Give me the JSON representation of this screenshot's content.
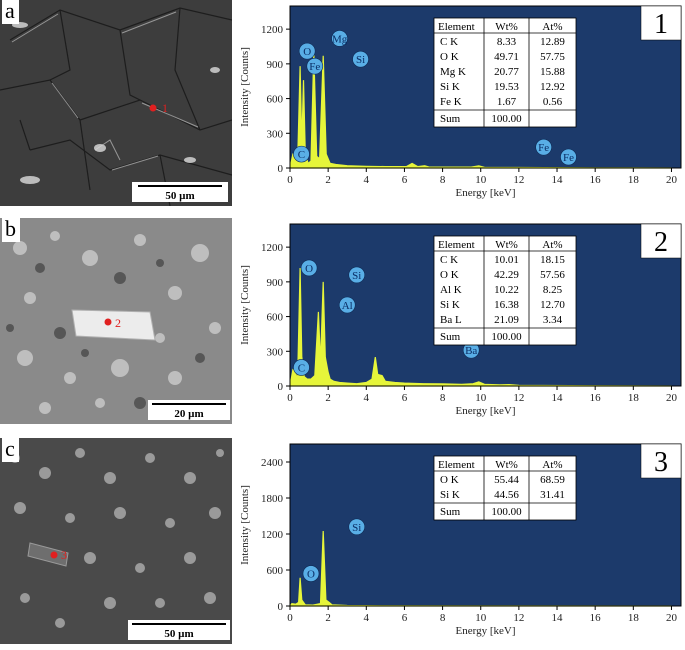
{
  "figure": {
    "rows": [
      {
        "letter": "a",
        "spot_label": "1",
        "scale_bar": "50 µm",
        "spectrum_number": "1",
        "chart_data": {
          "type": "line",
          "xlabel": "Energy [keV]",
          "ylabel": "Intensity [Counts]",
          "xlim": [
            0,
            20.5
          ],
          "ylim": [
            0,
            1400
          ],
          "xticks": [
            0,
            2,
            4,
            6,
            8,
            10,
            12,
            14,
            16,
            18,
            20
          ],
          "yticks": [
            0,
            300,
            600,
            900,
            1200
          ],
          "peaks": [
            {
              "element": "C",
              "x": 0.28,
              "y": 110,
              "lx": 0.6,
              "ly": 120
            },
            {
              "element": "O",
              "x": 0.53,
              "y": 880,
              "lx": 0.9,
              "ly": 1010
            },
            {
              "element": "Fe",
              "x": 0.71,
              "y": 760,
              "lx": 1.3,
              "ly": 880
            },
            {
              "element": "Mg",
              "x": 1.25,
              "y": 1000,
              "lx": 2.6,
              "ly": 1120
            },
            {
              "element": "Si",
              "x": 1.74,
              "y": 970,
              "lx": 3.7,
              "ly": 940
            },
            {
              "element": "Fe",
              "x": 6.4,
              "y": 40,
              "lx": 13.3,
              "ly": 180
            },
            {
              "element": "Fe",
              "x": 7.06,
              "y": 20,
              "lx": 14.6,
              "ly": 95
            }
          ],
          "spectrum": [
            [
              0,
              0
            ],
            [
              0.15,
              120
            ],
            [
              0.28,
              110
            ],
            [
              0.4,
              40
            ],
            [
              0.53,
              880
            ],
            [
              0.62,
              200
            ],
            [
              0.71,
              760
            ],
            [
              0.8,
              120
            ],
            [
              0.95,
              40
            ],
            [
              1.1,
              60
            ],
            [
              1.25,
              1000
            ],
            [
              1.4,
              100
            ],
            [
              1.55,
              80
            ],
            [
              1.74,
              970
            ],
            [
              1.9,
              120
            ],
            [
              2.1,
              40
            ],
            [
              2.4,
              30
            ],
            [
              3,
              20
            ],
            [
              4,
              15
            ],
            [
              5,
              12
            ],
            [
              6.1,
              12
            ],
            [
              6.4,
              40
            ],
            [
              6.7,
              12
            ],
            [
              7.06,
              20
            ],
            [
              7.3,
              8
            ],
            [
              8,
              8
            ],
            [
              9.5,
              8
            ],
            [
              9.9,
              18
            ],
            [
              10.2,
              6
            ],
            [
              12,
              4
            ],
            [
              16,
              2
            ],
            [
              20,
              0
            ]
          ]
        },
        "table": {
          "headers": [
            "Element",
            "Wt%",
            "At%"
          ],
          "rows": [
            [
              "C K",
              "8.33",
              "12.89"
            ],
            [
              "O K",
              "49.71",
              "57.75"
            ],
            [
              "Mg K",
              "20.77",
              "15.88"
            ],
            [
              "Si K",
              "19.53",
              "12.92"
            ],
            [
              "Fe K",
              "1.67",
              "0.56"
            ]
          ],
          "sum": [
            "Sum",
            "100.00",
            ""
          ]
        }
      },
      {
        "letter": "b",
        "spot_label": "2",
        "scale_bar": "20 µm",
        "spectrum_number": "2",
        "chart_data": {
          "type": "line",
          "xlabel": "Energy [keV]",
          "ylabel": "Intensity [Counts]",
          "xlim": [
            0,
            20.5
          ],
          "ylim": [
            0,
            1400
          ],
          "xticks": [
            0,
            2,
            4,
            6,
            8,
            10,
            12,
            14,
            16,
            18,
            20
          ],
          "yticks": [
            0,
            300,
            600,
            900,
            1200
          ],
          "peaks": [
            {
              "element": "C",
              "x": 0.28,
              "y": 120,
              "lx": 0.6,
              "ly": 160
            },
            {
              "element": "O",
              "x": 0.53,
              "y": 1020,
              "lx": 1.0,
              "ly": 1020
            },
            {
              "element": "Si",
              "x": 1.74,
              "y": 900,
              "lx": 3.5,
              "ly": 960
            },
            {
              "element": "Al",
              "x": 1.49,
              "y": 640,
              "lx": 3.0,
              "ly": 700
            },
            {
              "element": "Ba",
              "x": 4.47,
              "y": 250,
              "lx": 9.5,
              "ly": 310
            }
          ],
          "spectrum": [
            [
              0,
              0
            ],
            [
              0.15,
              140
            ],
            [
              0.28,
              120
            ],
            [
              0.4,
              50
            ],
            [
              0.53,
              1020
            ],
            [
              0.62,
              250
            ],
            [
              0.75,
              80
            ],
            [
              0.9,
              60
            ],
            [
              1.1,
              60
            ],
            [
              1.3,
              90
            ],
            [
              1.49,
              640
            ],
            [
              1.6,
              200
            ],
            [
              1.74,
              900
            ],
            [
              1.85,
              250
            ],
            [
              2.0,
              120
            ],
            [
              2.1,
              60
            ],
            [
              2.3,
              40
            ],
            [
              2.6,
              30
            ],
            [
              3,
              25
            ],
            [
              3.5,
              20
            ],
            [
              4,
              30
            ],
            [
              4.3,
              60
            ],
            [
              4.47,
              250
            ],
            [
              4.6,
              100
            ],
            [
              4.83,
              90
            ],
            [
              5.0,
              40
            ],
            [
              5.5,
              30
            ],
            [
              6,
              25
            ],
            [
              7,
              20
            ],
            [
              8,
              18
            ],
            [
              9,
              15
            ],
            [
              9.6,
              20
            ],
            [
              9.9,
              35
            ],
            [
              10.2,
              15
            ],
            [
              11,
              10
            ],
            [
              11.5,
              12
            ],
            [
              12,
              5
            ],
            [
              16,
              3
            ],
            [
              20,
              0
            ]
          ]
        },
        "table": {
          "headers": [
            "Element",
            "Wt%",
            "At%"
          ],
          "rows": [
            [
              "C K",
              "10.01",
              "18.15"
            ],
            [
              "O K",
              "42.29",
              "57.56"
            ],
            [
              "Al K",
              "10.22",
              "8.25"
            ],
            [
              "Si K",
              "16.38",
              "12.70"
            ],
            [
              "Ba L",
              "21.09",
              "3.34"
            ]
          ],
          "sum": [
            "Sum",
            "100.00",
            ""
          ]
        }
      },
      {
        "letter": "c",
        "spot_label": "3",
        "scale_bar": "50 µm",
        "spectrum_number": "3",
        "chart_data": {
          "type": "line",
          "xlabel": "Energy [keV]",
          "ylabel": "Intensity [Counts]",
          "xlim": [
            0,
            20.5
          ],
          "ylim": [
            0,
            2700
          ],
          "xticks": [
            0,
            2,
            4,
            6,
            8,
            10,
            12,
            14,
            16,
            18,
            20
          ],
          "yticks": [
            0,
            600,
            1200,
            1800,
            2400
          ],
          "peaks": [
            {
              "element": "O",
              "x": 0.53,
              "y": 470,
              "lx": 1.1,
              "ly": 540
            },
            {
              "element": "Si",
              "x": 1.74,
              "y": 1250,
              "lx": 3.5,
              "ly": 1320
            }
          ],
          "spectrum": [
            [
              0,
              0
            ],
            [
              0.1,
              40
            ],
            [
              0.3,
              30
            ],
            [
              0.45,
              60
            ],
            [
              0.53,
              470
            ],
            [
              0.62,
              100
            ],
            [
              0.8,
              20
            ],
            [
              1.2,
              15
            ],
            [
              1.6,
              40
            ],
            [
              1.74,
              1250
            ],
            [
              1.88,
              100
            ],
            [
              2.05,
              60
            ],
            [
              2.2,
              20
            ],
            [
              3,
              8
            ],
            [
              5,
              5
            ],
            [
              10,
              3
            ],
            [
              20,
              0
            ]
          ]
        },
        "table": {
          "headers": [
            "Element",
            "Wt%",
            "At%"
          ],
          "rows": [
            [
              "O K",
              "55.44",
              "68.59"
            ],
            [
              "Si K",
              "44.56",
              "31.41"
            ]
          ],
          "sum": [
            "Sum",
            "100.00",
            ""
          ]
        }
      }
    ],
    "colors": {
      "plot_background": "#1c3a6b",
      "spectrum": "#e6f53a",
      "peak_label_fill": "#59aee6",
      "sem_base_a": "#3d3d3d",
      "sem_base_b": "#8a8a8a",
      "sem_base_c": "#4a4a4a",
      "spot_marker": "#e02020"
    }
  }
}
